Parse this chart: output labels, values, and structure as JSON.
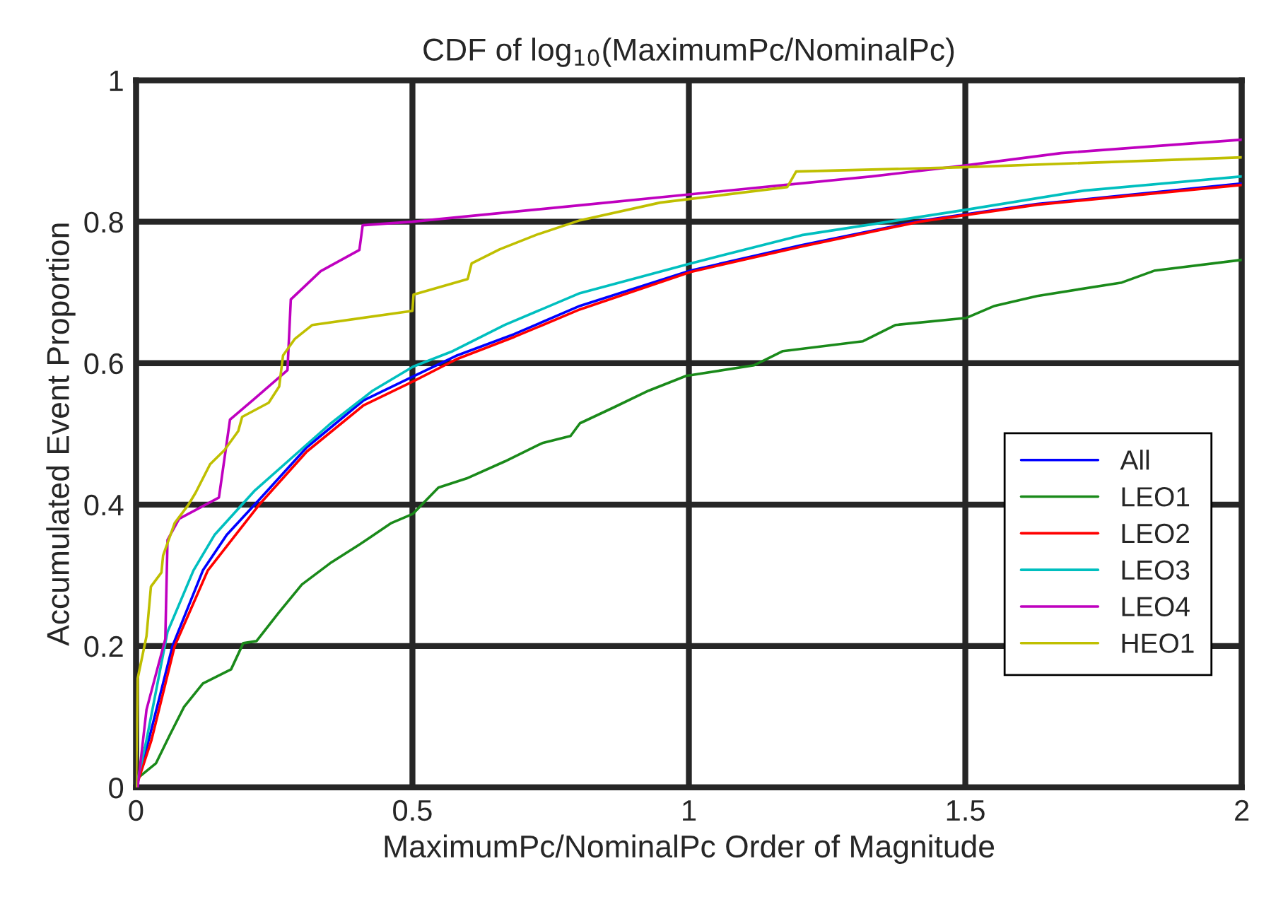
{
  "chart_data": {
    "type": "line",
    "title": "CDF of log$_{10}$(MaximumPc/NominalPc)",
    "xlabel": "MaximumPc/NominalPc Order of Magnitude",
    "ylabel": "Accumulated Event Proportion",
    "xlim": [
      0,
      2
    ],
    "ylim": [
      0,
      1
    ],
    "xticks": [
      0,
      0.5,
      1,
      1.5,
      2
    ],
    "yticks": [
      0,
      0.2,
      0.4,
      0.6,
      0.8,
      1
    ],
    "grid": true,
    "legend": "right",
    "marker": "none",
    "line_style": "solid",
    "series": [
      {
        "name": "All",
        "color": "#0000ff",
        "x": [
          0,
          0.023,
          0.066,
          0.121,
          0.164,
          0.223,
          0.309,
          0.411,
          0.501,
          0.581,
          0.684,
          0.803,
          1.003,
          1.204,
          1.417,
          1.63,
          2.0
        ],
        "values": [
          0,
          0.067,
          0.2,
          0.307,
          0.357,
          0.407,
          0.481,
          0.547,
          0.581,
          0.611,
          0.641,
          0.681,
          0.731,
          0.767,
          0.801,
          0.825,
          0.854
        ]
      },
      {
        "name": "LEO1",
        "color": "#1a8a1a",
        "x": [
          0,
          0.003,
          0.036,
          0.061,
          0.087,
          0.121,
          0.172,
          0.194,
          0.218,
          0.258,
          0.3,
          0.351,
          0.411,
          0.462,
          0.501,
          0.547,
          0.598,
          0.667,
          0.735,
          0.786,
          0.803,
          0.863,
          0.927,
          0.995,
          1.118,
          1.17,
          1.315,
          1.374,
          1.502,
          1.553,
          1.63,
          1.783,
          1.843,
          2.0
        ],
        "values": [
          0,
          0.013,
          0.034,
          0.074,
          0.114,
          0.147,
          0.167,
          0.204,
          0.207,
          0.247,
          0.287,
          0.317,
          0.347,
          0.374,
          0.387,
          0.424,
          0.437,
          0.461,
          0.487,
          0.497,
          0.515,
          0.537,
          0.561,
          0.582,
          0.597,
          0.617,
          0.631,
          0.654,
          0.664,
          0.681,
          0.695,
          0.714,
          0.731,
          0.746
        ]
      },
      {
        "name": "LEO2",
        "color": "#ff0000",
        "x": [
          0,
          0.028,
          0.07,
          0.13,
          0.223,
          0.309,
          0.411,
          0.501,
          0.581,
          0.684,
          0.803,
          1.003,
          1.204,
          1.417,
          1.63,
          2.0
        ],
        "values": [
          0,
          0.067,
          0.2,
          0.307,
          0.4,
          0.475,
          0.54,
          0.574,
          0.606,
          0.637,
          0.676,
          0.729,
          0.765,
          0.8,
          0.824,
          0.852
        ]
      },
      {
        "name": "LEO3",
        "color": "#00bfbf",
        "x": [
          0,
          0.019,
          0.057,
          0.104,
          0.142,
          0.215,
          0.283,
          0.351,
          0.428,
          0.501,
          0.573,
          0.667,
          0.803,
          1.003,
          1.204,
          1.494,
          1.715,
          2.0
        ],
        "values": [
          0,
          0.067,
          0.22,
          0.307,
          0.357,
          0.42,
          0.467,
          0.514,
          0.561,
          0.595,
          0.617,
          0.654,
          0.699,
          0.741,
          0.781,
          0.816,
          0.844,
          0.864
        ]
      },
      {
        "name": "LEO4",
        "color": "#bf00bf",
        "x": [
          0,
          0.003,
          0.019,
          0.053,
          0.057,
          0.078,
          0.15,
          0.17,
          0.215,
          0.274,
          0.28,
          0.334,
          0.404,
          0.41,
          0.5,
          0.8,
          1.174,
          1.33,
          1.494,
          1.673,
          2.0
        ],
        "values": [
          0,
          0,
          0.11,
          0.21,
          0.35,
          0.38,
          0.41,
          0.52,
          0.55,
          0.59,
          0.69,
          0.73,
          0.76,
          0.795,
          0.8,
          0.823,
          0.852,
          0.864,
          0.879,
          0.897,
          0.916
        ]
      },
      {
        "name": "HEO1",
        "color": "#bfbf00",
        "x": [
          0,
          0.003,
          0.019,
          0.027,
          0.046,
          0.049,
          0.07,
          0.095,
          0.108,
          0.134,
          0.16,
          0.185,
          0.192,
          0.24,
          0.259,
          0.266,
          0.287,
          0.319,
          0.5,
          0.502,
          0.6,
          0.607,
          0.658,
          0.726,
          0.803,
          0.948,
          1.178,
          1.194,
          1.494,
          2.0
        ],
        "values": [
          0,
          0.154,
          0.214,
          0.284,
          0.304,
          0.328,
          0.374,
          0.4,
          0.417,
          0.457,
          0.477,
          0.504,
          0.524,
          0.544,
          0.567,
          0.611,
          0.634,
          0.654,
          0.674,
          0.697,
          0.719,
          0.741,
          0.761,
          0.782,
          0.802,
          0.827,
          0.849,
          0.871,
          0.877,
          0.891
        ]
      }
    ]
  }
}
